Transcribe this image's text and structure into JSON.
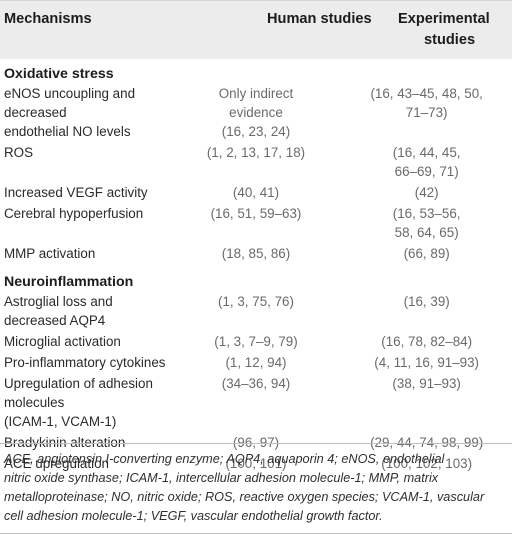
{
  "header": {
    "col1": "Mechanisms",
    "col2": "Human studies",
    "col3_line1": "Experimental",
    "col3_line2": "studies"
  },
  "sections": [
    {
      "title": "Oxidative stress",
      "rows": [
        {
          "mech": [
            "eNOS uncoupling and decreased",
            "endothelial NO levels"
          ],
          "human": [
            "Only indirect",
            "evidence",
            "(16, 23, 24)"
          ],
          "exp": [
            "(16, 43–45, 48, 50,",
            "71–73)"
          ]
        },
        {
          "mech": [
            "ROS"
          ],
          "human": [
            "(1, 2, 13, 17, 18)"
          ],
          "exp": [
            "(16, 44, 45,",
            "66–69, 71)"
          ]
        },
        {
          "mech": [
            "Increased VEGF activity"
          ],
          "human": [
            "(40, 41)"
          ],
          "exp": [
            "(42)"
          ]
        },
        {
          "mech": [
            "Cerebral hypoperfusion"
          ],
          "human": [
            "(16, 51, 59–63)"
          ],
          "exp": [
            "(16, 53–56,",
            "58, 64, 65)"
          ]
        },
        {
          "mech": [
            "MMP activation"
          ],
          "human": [
            "(18, 85, 86)"
          ],
          "exp": [
            "(66, 89)"
          ]
        }
      ]
    },
    {
      "title": "Neuroinflammation",
      "rows": [
        {
          "mech": [
            "Astroglial loss and decreased AQP4"
          ],
          "human": [
            "(1, 3, 75, 76)"
          ],
          "exp": [
            "(16, 39)"
          ]
        },
        {
          "mech": [
            "Microglial activation"
          ],
          "human": [
            "(1, 3, 7–9, 79)"
          ],
          "exp": [
            "(16, 78, 82–84)"
          ]
        },
        {
          "mech": [
            "Pro-inflammatory cytokines"
          ],
          "human": [
            "(1, 12, 94)"
          ],
          "exp": [
            "(4, 11, 16, 91–93)"
          ]
        },
        {
          "mech": [
            "Upregulation of adhesion molecules",
            "(ICAM-1, VCAM-1)"
          ],
          "human": [
            "(34–36, 94)"
          ],
          "exp": [
            "(38, 91–93)"
          ]
        },
        {
          "mech": [
            "Bradykinin alteration"
          ],
          "human": [
            "(96, 97)"
          ],
          "exp": [
            "(29, 44, 74, 98, 99)"
          ]
        },
        {
          "mech": [
            "ACE upregulation"
          ],
          "human": [
            "(100, 101)"
          ],
          "exp": [
            "(100, 102, 103)"
          ]
        }
      ]
    }
  ],
  "footnote": [
    "ACE, angiotensin I-converting enzyme; AQP4, aquaporin 4; eNOS, endothelial",
    "nitric oxide synthase; ICAM-1, intercellular adhesion molecule-1; MMP, matrix",
    "metalloproteinase; NO, nitric oxide; ROS, reactive oxygen species; VCAM-1, vascular",
    "cell adhesion molecule-1; VEGF, vascular endothelial growth factor."
  ]
}
